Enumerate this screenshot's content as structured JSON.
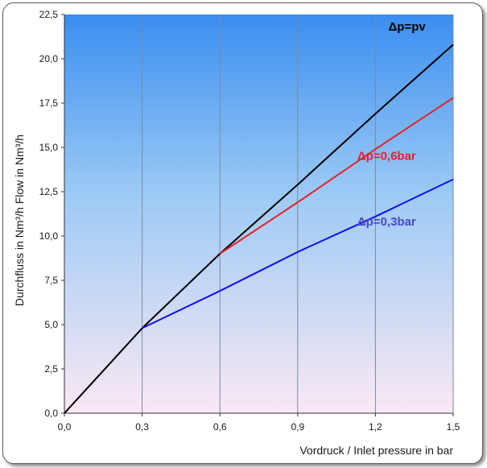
{
  "chart_data": {
    "type": "line",
    "title": "",
    "xlabel": "Vordruck / Inlet pressure in bar",
    "ylabel": "Durchfluss in Nm³/h  Flow in Nm³/h",
    "xlim": [
      0,
      1.5
    ],
    "ylim": [
      0,
      22.5
    ],
    "x_ticks": [
      "0,0",
      "0,3",
      "0,6",
      "0,9",
      "1,2",
      "1,5"
    ],
    "y_ticks": [
      "0,0",
      "2,5",
      "5,0",
      "7,5",
      "10,0",
      "12,5",
      "15,0",
      "17,5",
      "20,0",
      "22,5"
    ],
    "grid": "vertical",
    "background": "gradient blue (top) to light pink (bottom)",
    "series": [
      {
        "name": "Δp=pv",
        "color": "#000000",
        "x": [
          0,
          0.3,
          0.6,
          0.9,
          1.2,
          1.5
        ],
        "y": [
          0,
          4.8,
          9.0,
          12.9,
          16.9,
          20.8
        ]
      },
      {
        "name": "Δp=0,6bar",
        "color": "#e8202a",
        "x": [
          0.6,
          0.9,
          1.2,
          1.5
        ],
        "y": [
          9.0,
          11.9,
          14.9,
          17.8
        ]
      },
      {
        "name": "Δp=0,3bar",
        "color": "#1010ee",
        "x": [
          0.3,
          0.6,
          0.9,
          1.2,
          1.5
        ],
        "y": [
          4.8,
          6.9,
          9.1,
          11.1,
          13.2
        ]
      }
    ],
    "label_colors": [
      "#000000",
      "#e8202a",
      "#4848c8"
    ]
  }
}
